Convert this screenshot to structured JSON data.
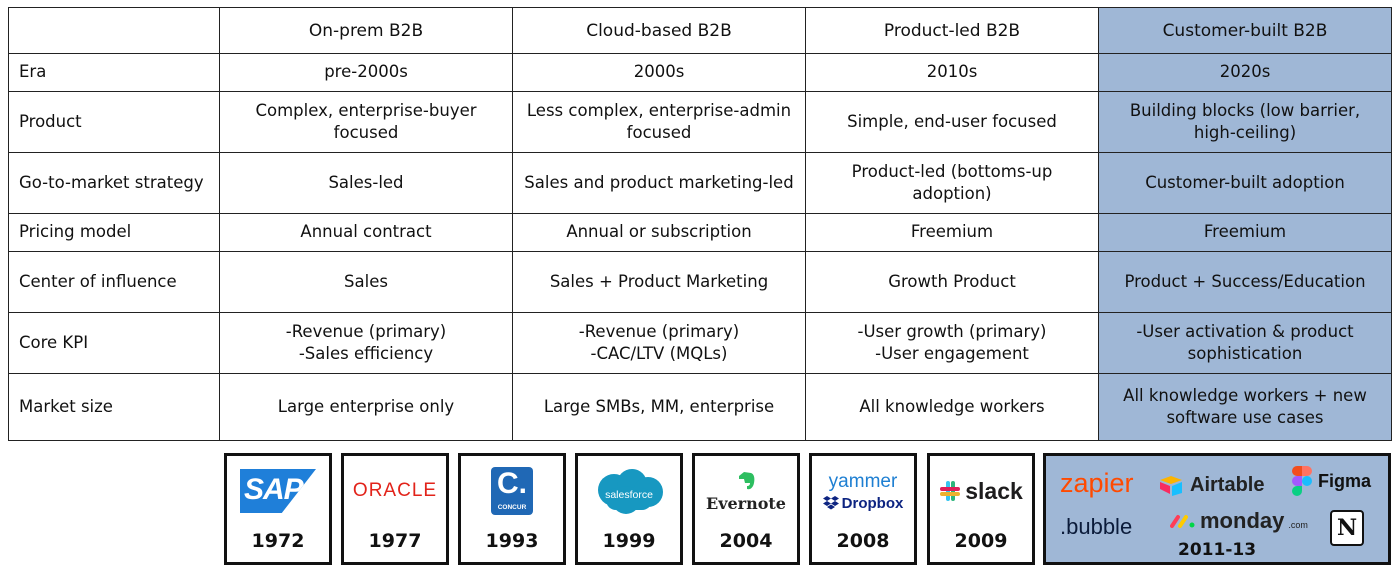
{
  "table": {
    "headers": [
      "",
      "On-prem B2B",
      "Cloud-based B2B",
      "Product-led B2B",
      "Customer-built B2B"
    ],
    "rows": [
      {
        "label": "Era",
        "cells": [
          "pre-2000s",
          "2000s",
          "2010s",
          "2020s"
        ]
      },
      {
        "label": "Product",
        "cells": [
          "Complex, enterprise-buyer focused",
          "Less complex, enterprise-admin focused",
          "Simple, end-user focused",
          "Building blocks (low barrier, high-ceiling)"
        ]
      },
      {
        "label": "Go-to-market strategy",
        "cells": [
          "Sales-led",
          "Sales and product marketing-led",
          "Product-led (bottoms-up adoption)",
          "Customer-built adoption"
        ]
      },
      {
        "label": "Pricing model",
        "cells": [
          "Annual contract",
          "Annual or subscription",
          "Freemium",
          "Freemium"
        ]
      },
      {
        "label": "Center of influence",
        "cells": [
          "Sales",
          "Sales + Product Marketing",
          "Growth Product",
          "Product + Success/Education"
        ]
      },
      {
        "label": "Core KPI",
        "cells": [
          "-Revenue (primary)\n-Sales efficiency",
          "-Revenue (primary)\n-CAC/LTV (MQLs)",
          "-User growth (primary)\n-User engagement",
          "-User activation & product sophistication"
        ]
      },
      {
        "label": "Market size",
        "cells": [
          "Large enterprise only",
          "Large SMBs, MM, enterprise",
          "All knowledge workers",
          "All knowledge workers + new software use cases"
        ]
      }
    ],
    "highlight_color": "#9fb7d6"
  },
  "logos": {
    "sap": {
      "text": "SAP",
      "year": "1972"
    },
    "oracle": {
      "text": "ORACLE",
      "year": "1977"
    },
    "concur": {
      "text": "C.",
      "sub": "CONCUR",
      "year": "1993"
    },
    "salesforce": {
      "text": "salesforce",
      "year": "1999"
    },
    "evernote": {
      "text": "Evernote",
      "year": "2004"
    },
    "yammer_dropbox": {
      "text1": "yammer",
      "text2": "Dropbox",
      "year": "2008"
    },
    "slack": {
      "text": "slack",
      "year": "2009"
    },
    "modern": {
      "zapier": "zapier",
      "airtable": "Airtable",
      "figma": "Figma",
      "bubble": ".bubble",
      "monday": "monday",
      "monday_suffix": ".com",
      "notion": "N",
      "year": "2011-13"
    }
  }
}
